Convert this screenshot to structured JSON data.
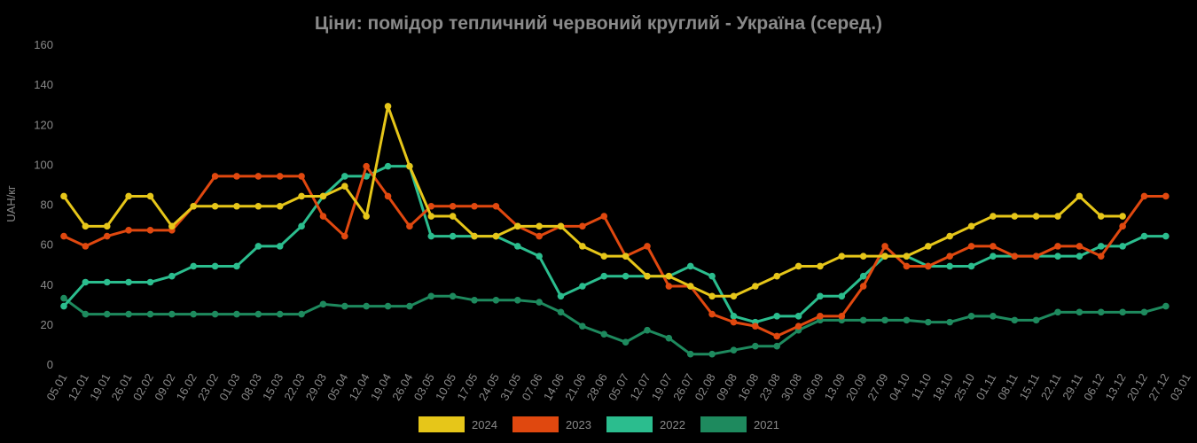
{
  "chart_data": {
    "type": "line",
    "title": "Ціни: помідор тепличний червоний круглий - Україна (серед.)",
    "y_label": "UAH/кг",
    "categories": [
      "05.01",
      "12.01",
      "19.01",
      "26.01",
      "02.02",
      "09.02",
      "16.02",
      "23.02",
      "01.03",
      "08.03",
      "15.03",
      "22.03",
      "29.03",
      "05.04",
      "12.04",
      "19.04",
      "26.04",
      "03.05",
      "10.05",
      "17.05",
      "24.05",
      "31.05",
      "07.06",
      "14.06",
      "21.06",
      "28.06",
      "05.07",
      "12.07",
      "19.07",
      "26.07",
      "02.08",
      "09.08",
      "16.08",
      "23.08",
      "30.08",
      "06.09",
      "13.09",
      "20.09",
      "27.09",
      "04.10",
      "11.10",
      "18.10",
      "25.10",
      "01.11",
      "08.11",
      "15.11",
      "22.11",
      "29.11",
      "06.12",
      "13.12",
      "20.12",
      "27.12",
      "03.01"
    ],
    "series": [
      {
        "name": "2024",
        "color": "#e6c619",
        "values": [
          84,
          69,
          69,
          84,
          84,
          69,
          79,
          79,
          79,
          79,
          79,
          84,
          84,
          89,
          74,
          129,
          99,
          74,
          74,
          64,
          64,
          69,
          69,
          69,
          59,
          54,
          54,
          44,
          44,
          39,
          34,
          34,
          39,
          44,
          49,
          49,
          54,
          54,
          54,
          54,
          59,
          64,
          69,
          74,
          74,
          74,
          74,
          84,
          74,
          74,
          null,
          null,
          null
        ]
      },
      {
        "name": "2023",
        "color": "#e0480f",
        "values": [
          64,
          59,
          64,
          67,
          67,
          67,
          79,
          94,
          94,
          94,
          94,
          94,
          74,
          64,
          99,
          84,
          69,
          79,
          79,
          79,
          79,
          69,
          64,
          69,
          69,
          74,
          54,
          59,
          39,
          39,
          25,
          21,
          19,
          14,
          19,
          24,
          24,
          39,
          59,
          49,
          49,
          54,
          59,
          59,
          54,
          54,
          59,
          59,
          54,
          69,
          84,
          84,
          null
        ]
      },
      {
        "name": "2022",
        "color": "#2bbd8e",
        "values": [
          29,
          41,
          41,
          41,
          41,
          44,
          49,
          49,
          49,
          59,
          59,
          69,
          84,
          94,
          94,
          99,
          99,
          64,
          64,
          64,
          64,
          59,
          54,
          34,
          39,
          44,
          44,
          44,
          44,
          49,
          44,
          24,
          21,
          24,
          24,
          34,
          34,
          44,
          54,
          54,
          49,
          49,
          49,
          54,
          54,
          54,
          54,
          54,
          59,
          59,
          64,
          64,
          null
        ]
      },
      {
        "name": "2021",
        "color": "#1e8a5e",
        "values": [
          33,
          25,
          25,
          25,
          25,
          25,
          25,
          25,
          25,
          25,
          25,
          25,
          30,
          29,
          29,
          29,
          29,
          34,
          34,
          32,
          32,
          32,
          31,
          26,
          19,
          15,
          11,
          17,
          13,
          5,
          5,
          7,
          9,
          9,
          17,
          22,
          22,
          22,
          22,
          22,
          21,
          21,
          24,
          24,
          22,
          22,
          26,
          26,
          26,
          26,
          26,
          29,
          null
        ]
      }
    ],
    "ylim": [
      0,
      160
    ],
    "yticks": [
      0,
      20,
      40,
      60,
      80,
      100,
      120,
      140,
      160
    ]
  }
}
